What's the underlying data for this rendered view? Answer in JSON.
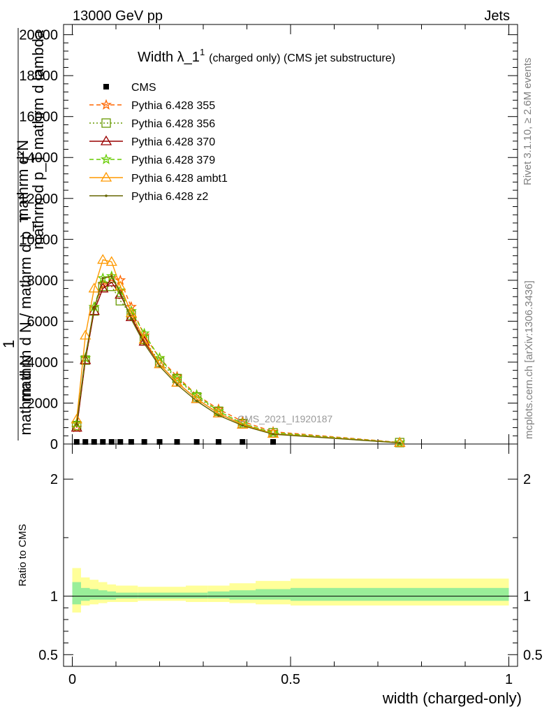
{
  "header": {
    "left": "13000 GeV pp",
    "right": "Jets"
  },
  "side_labels": {
    "rivet": "Rivet 3.1.10, ≥ 2.6M events",
    "mcplots": "mcplots.cern.ch [arXiv:1306.3436]"
  },
  "watermark": "CMS_2021_I1920187",
  "chart_data": [
    {
      "type": "line",
      "title_main": "Width λ_1",
      "title_sup": "1",
      "title_sub": "(charged only) (CMS jet substructure)",
      "ylabel_top_num": "mathrm d²N",
      "ylabel_top_den": "mathrm d p_T mathrm d lambda",
      "ylabel_top_num2": "1",
      "ylabel_left_text": "mathrm d N / mathrm d p_T",
      "ylabel_left_den": "mathrm d N",
      "xlabel": "",
      "xlim": [
        -0.02,
        1.02
      ],
      "ylim": [
        0,
        20500
      ],
      "yticks": [
        0,
        2000,
        4000,
        6000,
        8000,
        10000,
        12000,
        14000,
        16000,
        18000,
        20000
      ],
      "ytick_labels": [
        "0",
        "2000",
        "4000",
        "6000",
        "8000",
        "10000",
        "12000",
        "14000",
        "16000",
        "18000",
        "20000"
      ],
      "legend_position": "top-left",
      "series": [
        {
          "name": "CMS",
          "color": "#000000",
          "marker": "square",
          "style": "none",
          "x": [
            0.01,
            0.03,
            0.05,
            0.07,
            0.09,
            0.11,
            0.135,
            0.165,
            0.2,
            0.24,
            0.285,
            0.335,
            0.39,
            0.46
          ],
          "y": [
            0,
            0,
            0,
            0,
            0,
            0,
            0,
            0,
            0,
            0,
            0,
            0,
            0,
            0
          ]
        },
        {
          "name": "Pythia 6.428 355",
          "color": "#ff6600",
          "marker": "star",
          "style": "dashed",
          "x": [
            0.01,
            0.03,
            0.05,
            0.07,
            0.09,
            0.11,
            0.135,
            0.165,
            0.2,
            0.24,
            0.285,
            0.335,
            0.39,
            0.46,
            0.75
          ],
          "y": [
            800,
            4200,
            6700,
            7800,
            8100,
            8000,
            6700,
            5300,
            4200,
            3300,
            2400,
            1700,
            1100,
            600,
            80
          ]
        },
        {
          "name": "Pythia 6.428 356",
          "color": "#669900",
          "marker": "open-square",
          "style": "dotted",
          "x": [
            0.01,
            0.03,
            0.05,
            0.07,
            0.09,
            0.11,
            0.135,
            0.165,
            0.2,
            0.24,
            0.285,
            0.335,
            0.39,
            0.46,
            0.75
          ],
          "y": [
            900,
            4100,
            6500,
            7700,
            7700,
            7000,
            6300,
            5100,
            4000,
            3200,
            2300,
            1600,
            1000,
            550,
            70
          ]
        },
        {
          "name": "Pythia 6.428 370",
          "color": "#990000",
          "marker": "open-triangle",
          "style": "solid",
          "x": [
            0.01,
            0.03,
            0.05,
            0.07,
            0.09,
            0.11,
            0.135,
            0.165,
            0.2,
            0.24,
            0.285,
            0.335,
            0.39,
            0.46,
            0.75
          ],
          "y": [
            800,
            4100,
            6500,
            7600,
            7900,
            7300,
            6200,
            5000,
            3900,
            3000,
            2200,
            1500,
            950,
            500,
            60
          ]
        },
        {
          "name": "Pythia 6.428 379",
          "color": "#66cc00",
          "marker": "star",
          "style": "dashed",
          "x": [
            0.01,
            0.03,
            0.05,
            0.07,
            0.09,
            0.11,
            0.135,
            0.165,
            0.2,
            0.24,
            0.285,
            0.335,
            0.39,
            0.46,
            0.75
          ],
          "y": [
            1000,
            4200,
            6700,
            8100,
            8200,
            7500,
            6500,
            5400,
            4200,
            3200,
            2400,
            1600,
            1000,
            550,
            70
          ]
        },
        {
          "name": "Pythia 6.428 ambt1",
          "color": "#ff9900",
          "marker": "open-triangle",
          "style": "solid",
          "x": [
            0.01,
            0.03,
            0.05,
            0.07,
            0.09,
            0.11,
            0.135,
            0.165,
            0.2,
            0.24,
            0.285,
            0.335,
            0.39,
            0.46,
            0.75
          ],
          "y": [
            1200,
            5300,
            7600,
            9000,
            8900,
            7700,
            6400,
            5100,
            3900,
            3000,
            2200,
            1500,
            950,
            500,
            60
          ]
        },
        {
          "name": "Pythia 6.428 z2",
          "color": "#666600",
          "marker": "dot",
          "style": "solid",
          "x": [
            0.01,
            0.03,
            0.05,
            0.07,
            0.09,
            0.11,
            0.135,
            0.165,
            0.2,
            0.24,
            0.285,
            0.335,
            0.39,
            0.46,
            0.75
          ],
          "y": [
            1000,
            4300,
            6600,
            8100,
            8200,
            7400,
            6100,
            4900,
            3800,
            2900,
            2100,
            1400,
            900,
            480,
            55
          ]
        }
      ]
    },
    {
      "type": "area",
      "xlabel": "width (charged-only)",
      "ylabel": "Ratio to CMS",
      "xlim": [
        -0.02,
        1.02
      ],
      "ylim": [
        0.4,
        2.3
      ],
      "xticks": [
        0,
        0.5,
        1
      ],
      "xtick_labels": [
        "0",
        "0.5",
        "1"
      ],
      "yticks": [
        0.5,
        1,
        2
      ],
      "ytick_labels": [
        "0.5",
        "1",
        "2"
      ],
      "band_outer_color": "#ffff99",
      "band_inner_color": "#99ee99",
      "bins": [
        0,
        0.02,
        0.04,
        0.06,
        0.08,
        0.1,
        0.12,
        0.15,
        0.18,
        0.22,
        0.26,
        0.31,
        0.36,
        0.42,
        0.5,
        1.0
      ],
      "outer_low": [
        0.86,
        0.92,
        0.93,
        0.94,
        0.95,
        0.95,
        0.95,
        0.96,
        0.96,
        0.96,
        0.95,
        0.95,
        0.94,
        0.93,
        0.92
      ],
      "outer_high": [
        1.24,
        1.16,
        1.14,
        1.12,
        1.1,
        1.09,
        1.09,
        1.08,
        1.08,
        1.08,
        1.09,
        1.09,
        1.11,
        1.13,
        1.15
      ],
      "inner_low": [
        0.93,
        0.96,
        0.97,
        0.97,
        0.97,
        0.98,
        0.98,
        0.98,
        0.98,
        0.98,
        0.98,
        0.98,
        0.97,
        0.97,
        0.96
      ],
      "inner_high": [
        1.12,
        1.07,
        1.06,
        1.05,
        1.04,
        1.03,
        1.03,
        1.03,
        1.03,
        1.03,
        1.03,
        1.04,
        1.05,
        1.06,
        1.07
      ],
      "reference": 1
    }
  ]
}
